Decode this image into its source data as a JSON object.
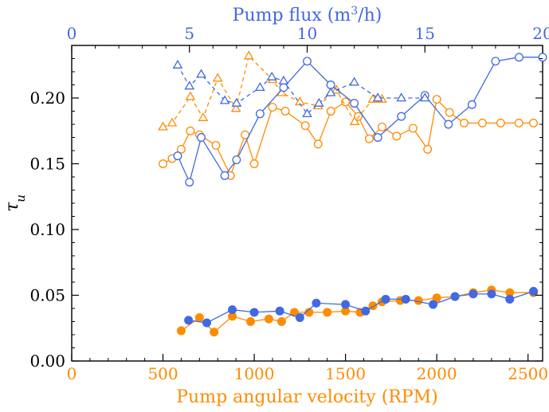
{
  "chart_data": {
    "type": "scatter",
    "title": "",
    "xlabel": "Pump angular velocity (RPM)",
    "xlabel_top": "Pump flux (m3/h)",
    "ylabel": "τu",
    "xlim": [
      0,
      2580
    ],
    "xlim_top": [
      0,
      20
    ],
    "ylim": [
      0,
      0.24
    ],
    "xticks": [
      0,
      500,
      1000,
      1500,
      2000,
      2500
    ],
    "xticks_top": [
      0,
      5,
      10,
      15,
      20
    ],
    "yticks": [
      0.0,
      0.05,
      0.1,
      0.15,
      0.2
    ],
    "ytick_labels": [
      "0.00",
      "0.05",
      "0.10",
      "0.15",
      "0.20"
    ],
    "grid": false,
    "colors": {
      "orange": "#FF8C00",
      "blue": "#4169E1",
      "axis": "#000000"
    },
    "series": [
      {
        "axis": "bottom",
        "color": "#FF8C00",
        "marker": "open-circle",
        "line": "solid",
        "x": [
          500,
          550,
          600,
          650,
          700,
          790,
          870,
          950,
          1000,
          1100,
          1170,
          1280,
          1350,
          1420,
          1500,
          1570,
          1630,
          1700,
          1780,
          1870,
          1950,
          2000,
          2070,
          2150,
          2250,
          2350,
          2450,
          2530
        ],
        "y": [
          0.15,
          0.154,
          0.161,
          0.175,
          0.172,
          0.164,
          0.141,
          0.172,
          0.15,
          0.193,
          0.19,
          0.179,
          0.165,
          0.19,
          0.197,
          0.186,
          0.169,
          0.178,
          0.171,
          0.177,
          0.161,
          0.199,
          0.189,
          0.181,
          0.181,
          0.181,
          0.181,
          0.181
        ]
      },
      {
        "axis": "bottom",
        "color": "#FF8C00",
        "marker": "open-triangle",
        "line": "dashed",
        "x": [
          500,
          550,
          650,
          720,
          800,
          900,
          970,
          1100,
          1150,
          1250,
          1350,
          1450,
          1550,
          1650,
          1700
        ],
        "y": [
          0.178,
          0.181,
          0.201,
          0.185,
          0.215,
          0.192,
          0.232,
          0.214,
          0.204,
          0.197,
          0.194,
          0.206,
          0.182,
          0.199,
          0.199
        ]
      },
      {
        "axis": "top",
        "color": "#4169E1",
        "marker": "open-circle",
        "line": "solid",
        "x": [
          4.5,
          5.0,
          5.5,
          6.5,
          7.0,
          8.0,
          9.0,
          10.0,
          11.0,
          12.0,
          13.0,
          14.0,
          15.0,
          16.0,
          17.0,
          18.0,
          19.0,
          20.0
        ],
        "y": [
          0.156,
          0.136,
          0.17,
          0.141,
          0.153,
          0.188,
          0.208,
          0.228,
          0.21,
          0.196,
          0.17,
          0.186,
          0.202,
          0.18,
          0.195,
          0.228,
          0.231,
          0.231
        ]
      },
      {
        "axis": "top",
        "color": "#4169E1",
        "marker": "open-triangle",
        "line": "dashed",
        "x": [
          4.5,
          5.0,
          5.5,
          6.5,
          7.0,
          8.0,
          8.5,
          9.0,
          10.0,
          10.5,
          11.0,
          12.0,
          13.0,
          14.0,
          15.0
        ],
        "y": [
          0.225,
          0.209,
          0.218,
          0.198,
          0.196,
          0.208,
          0.216,
          0.213,
          0.188,
          0.196,
          0.204,
          0.212,
          0.2,
          0.2,
          0.2
        ]
      },
      {
        "axis": "bottom",
        "color": "#FF8C00",
        "marker": "filled-circle",
        "line": "solid",
        "x": [
          600,
          700,
          780,
          880,
          980,
          1080,
          1150,
          1220,
          1300,
          1400,
          1500,
          1580,
          1650,
          1700,
          1800,
          1900,
          2000,
          2100,
          2200,
          2300,
          2400,
          2530
        ],
        "y": [
          0.023,
          0.033,
          0.022,
          0.034,
          0.03,
          0.032,
          0.03,
          0.037,
          0.037,
          0.037,
          0.038,
          0.037,
          0.042,
          0.045,
          0.046,
          0.046,
          0.048,
          0.049,
          0.052,
          0.054,
          0.052,
          0.052
        ]
      },
      {
        "axis": "bottom",
        "color": "#4169E1",
        "marker": "filled-circle",
        "line": "solid",
        "x": [
          640,
          740,
          880,
          1000,
          1140,
          1250,
          1340,
          1500,
          1610,
          1720,
          1830,
          1980,
          2100,
          2200,
          2300,
          2400,
          2530
        ],
        "y": [
          0.031,
          0.029,
          0.039,
          0.037,
          0.038,
          0.033,
          0.044,
          0.043,
          0.038,
          0.047,
          0.047,
          0.043,
          0.049,
          0.051,
          0.051,
          0.047,
          0.053
        ]
      }
    ]
  }
}
